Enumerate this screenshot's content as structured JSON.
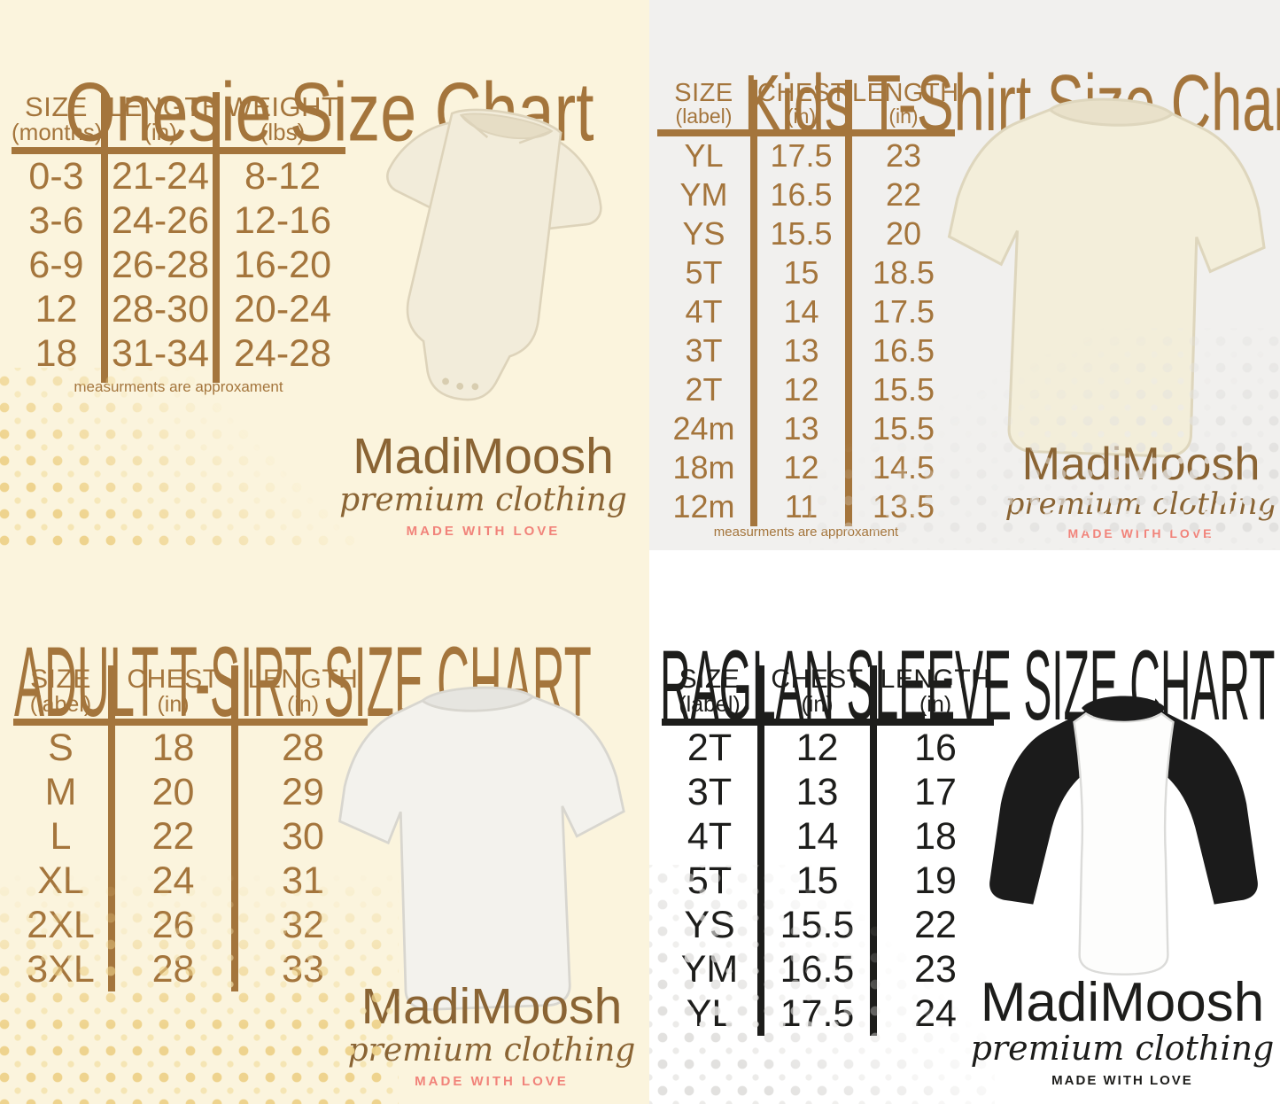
{
  "brand": {
    "name": "MadiMoosh",
    "tagline": "premium clothing",
    "motto": "MADE WITH LOVE"
  },
  "colors": {
    "brown_text": "#a4753c",
    "brown_logo": "#8a6434",
    "pink_motto": "#f1837a",
    "black_text": "#1d1d1b",
    "cream_background": "#fbf4dd",
    "light_gray_background": "#f1f0ee",
    "white_background": "#ffffff",
    "yellow_dots": "#eed28a",
    "gray_dots": "#e2e1df"
  },
  "charts": [
    {
      "id": "onesie",
      "title": "Onesie Size Chart",
      "note": "measurments are approxament",
      "columns": [
        {
          "label": "SIZE",
          "sub": "(months)"
        },
        {
          "label": "LENGTH",
          "sub": "(in)"
        },
        {
          "label": "WEIGHT",
          "sub": "(lbs)"
        }
      ],
      "rows": [
        [
          "0-3",
          "21-24",
          "8-12"
        ],
        [
          "3-6",
          "24-26",
          "12-16"
        ],
        [
          "6-9",
          "26-28",
          "16-20"
        ],
        [
          "12",
          "28-30",
          "20-24"
        ],
        [
          "18",
          "31-34",
          "24-28"
        ]
      ]
    },
    {
      "id": "kids-tshirt",
      "title": "Kids T-Shirt Size Chart",
      "note": "measurments are approxament",
      "columns": [
        {
          "label": "SIZE",
          "sub": "(label)"
        },
        {
          "label": "CHEST",
          "sub": "(in)"
        },
        {
          "label": "LENGTH",
          "sub": "(in)"
        }
      ],
      "rows": [
        [
          "YL",
          "17.5",
          "23"
        ],
        [
          "YM",
          "16.5",
          "22"
        ],
        [
          "YS",
          "15.5",
          "20"
        ],
        [
          "5T",
          "15",
          "18.5"
        ],
        [
          "4T",
          "14",
          "17.5"
        ],
        [
          "3T",
          "13",
          "16.5"
        ],
        [
          "2T",
          "12",
          "15.5"
        ],
        [
          "24m",
          "13",
          "15.5"
        ],
        [
          "18m",
          "12",
          "14.5"
        ],
        [
          "12m",
          "11",
          "13.5"
        ]
      ]
    },
    {
      "id": "adult-tshirt",
      "title": "ADULT T-SIRT SIZE CHART",
      "columns": [
        {
          "label": "SIZE",
          "sub": "(label)"
        },
        {
          "label": "CHEST",
          "sub": "(in)"
        },
        {
          "label": "LENGTH",
          "sub": "(in)"
        }
      ],
      "rows": [
        [
          "S",
          "18",
          "28"
        ],
        [
          "M",
          "20",
          "29"
        ],
        [
          "L",
          "22",
          "30"
        ],
        [
          "XL",
          "24",
          "31"
        ],
        [
          "2XL",
          "26",
          "32"
        ],
        [
          "3XL",
          "28",
          "33"
        ]
      ]
    },
    {
      "id": "raglan-sleeve",
      "title": "RAGLAN SLEEVE SIZE CHART",
      "columns": [
        {
          "label": "SIZE",
          "sub": "(label)"
        },
        {
          "label": "CHEST",
          "sub": "(in)"
        },
        {
          "label": "LENGTH",
          "sub": "(in)"
        }
      ],
      "rows": [
        [
          "2T",
          "12",
          "16"
        ],
        [
          "3T",
          "13",
          "17"
        ],
        [
          "4T",
          "14",
          "18"
        ],
        [
          "5T",
          "15",
          "19"
        ],
        [
          "YS",
          "15.5",
          "22"
        ],
        [
          "YM",
          "16.5",
          "23"
        ],
        [
          "YL",
          "17.5",
          "24"
        ]
      ]
    }
  ],
  "chart_data": [
    {
      "type": "table",
      "title": "Onesie Size Chart",
      "columns": [
        "SIZE (months)",
        "LENGTH (in)",
        "WEIGHT (lbs)"
      ],
      "rows": [
        [
          "0-3",
          "21-24",
          "8-12"
        ],
        [
          "3-6",
          "24-26",
          "12-16"
        ],
        [
          "6-9",
          "26-28",
          "16-20"
        ],
        [
          "12",
          "28-30",
          "20-24"
        ],
        [
          "18",
          "31-34",
          "24-28"
        ]
      ]
    },
    {
      "type": "table",
      "title": "Kids T-Shirt Size Chart",
      "columns": [
        "SIZE (label)",
        "CHEST (in)",
        "LENGTH (in)"
      ],
      "rows": [
        [
          "YL",
          "17.5",
          "23"
        ],
        [
          "YM",
          "16.5",
          "22"
        ],
        [
          "YS",
          "15.5",
          "20"
        ],
        [
          "5T",
          "15",
          "18.5"
        ],
        [
          "4T",
          "14",
          "17.5"
        ],
        [
          "3T",
          "13",
          "16.5"
        ],
        [
          "2T",
          "12",
          "15.5"
        ],
        [
          "24m",
          "13",
          "15.5"
        ],
        [
          "18m",
          "12",
          "14.5"
        ],
        [
          "12m",
          "11",
          "13.5"
        ]
      ]
    },
    {
      "type": "table",
      "title": "ADULT T-SIRT SIZE CHART",
      "columns": [
        "SIZE (label)",
        "CHEST (in)",
        "LENGTH (in)"
      ],
      "rows": [
        [
          "S",
          "18",
          "28"
        ],
        [
          "M",
          "20",
          "29"
        ],
        [
          "L",
          "22",
          "30"
        ],
        [
          "XL",
          "24",
          "31"
        ],
        [
          "2XL",
          "26",
          "32"
        ],
        [
          "3XL",
          "28",
          "33"
        ]
      ]
    },
    {
      "type": "table",
      "title": "RAGLAN SLEEVE SIZE CHART",
      "columns": [
        "SIZE (label)",
        "CHEST (in)",
        "LENGTH (in)"
      ],
      "rows": [
        [
          "2T",
          "12",
          "16"
        ],
        [
          "3T",
          "13",
          "17"
        ],
        [
          "4T",
          "14",
          "18"
        ],
        [
          "5T",
          "15",
          "19"
        ],
        [
          "YS",
          "15.5",
          "22"
        ],
        [
          "YM",
          "16.5",
          "23"
        ],
        [
          "YL",
          "17.5",
          "24"
        ]
      ]
    }
  ]
}
